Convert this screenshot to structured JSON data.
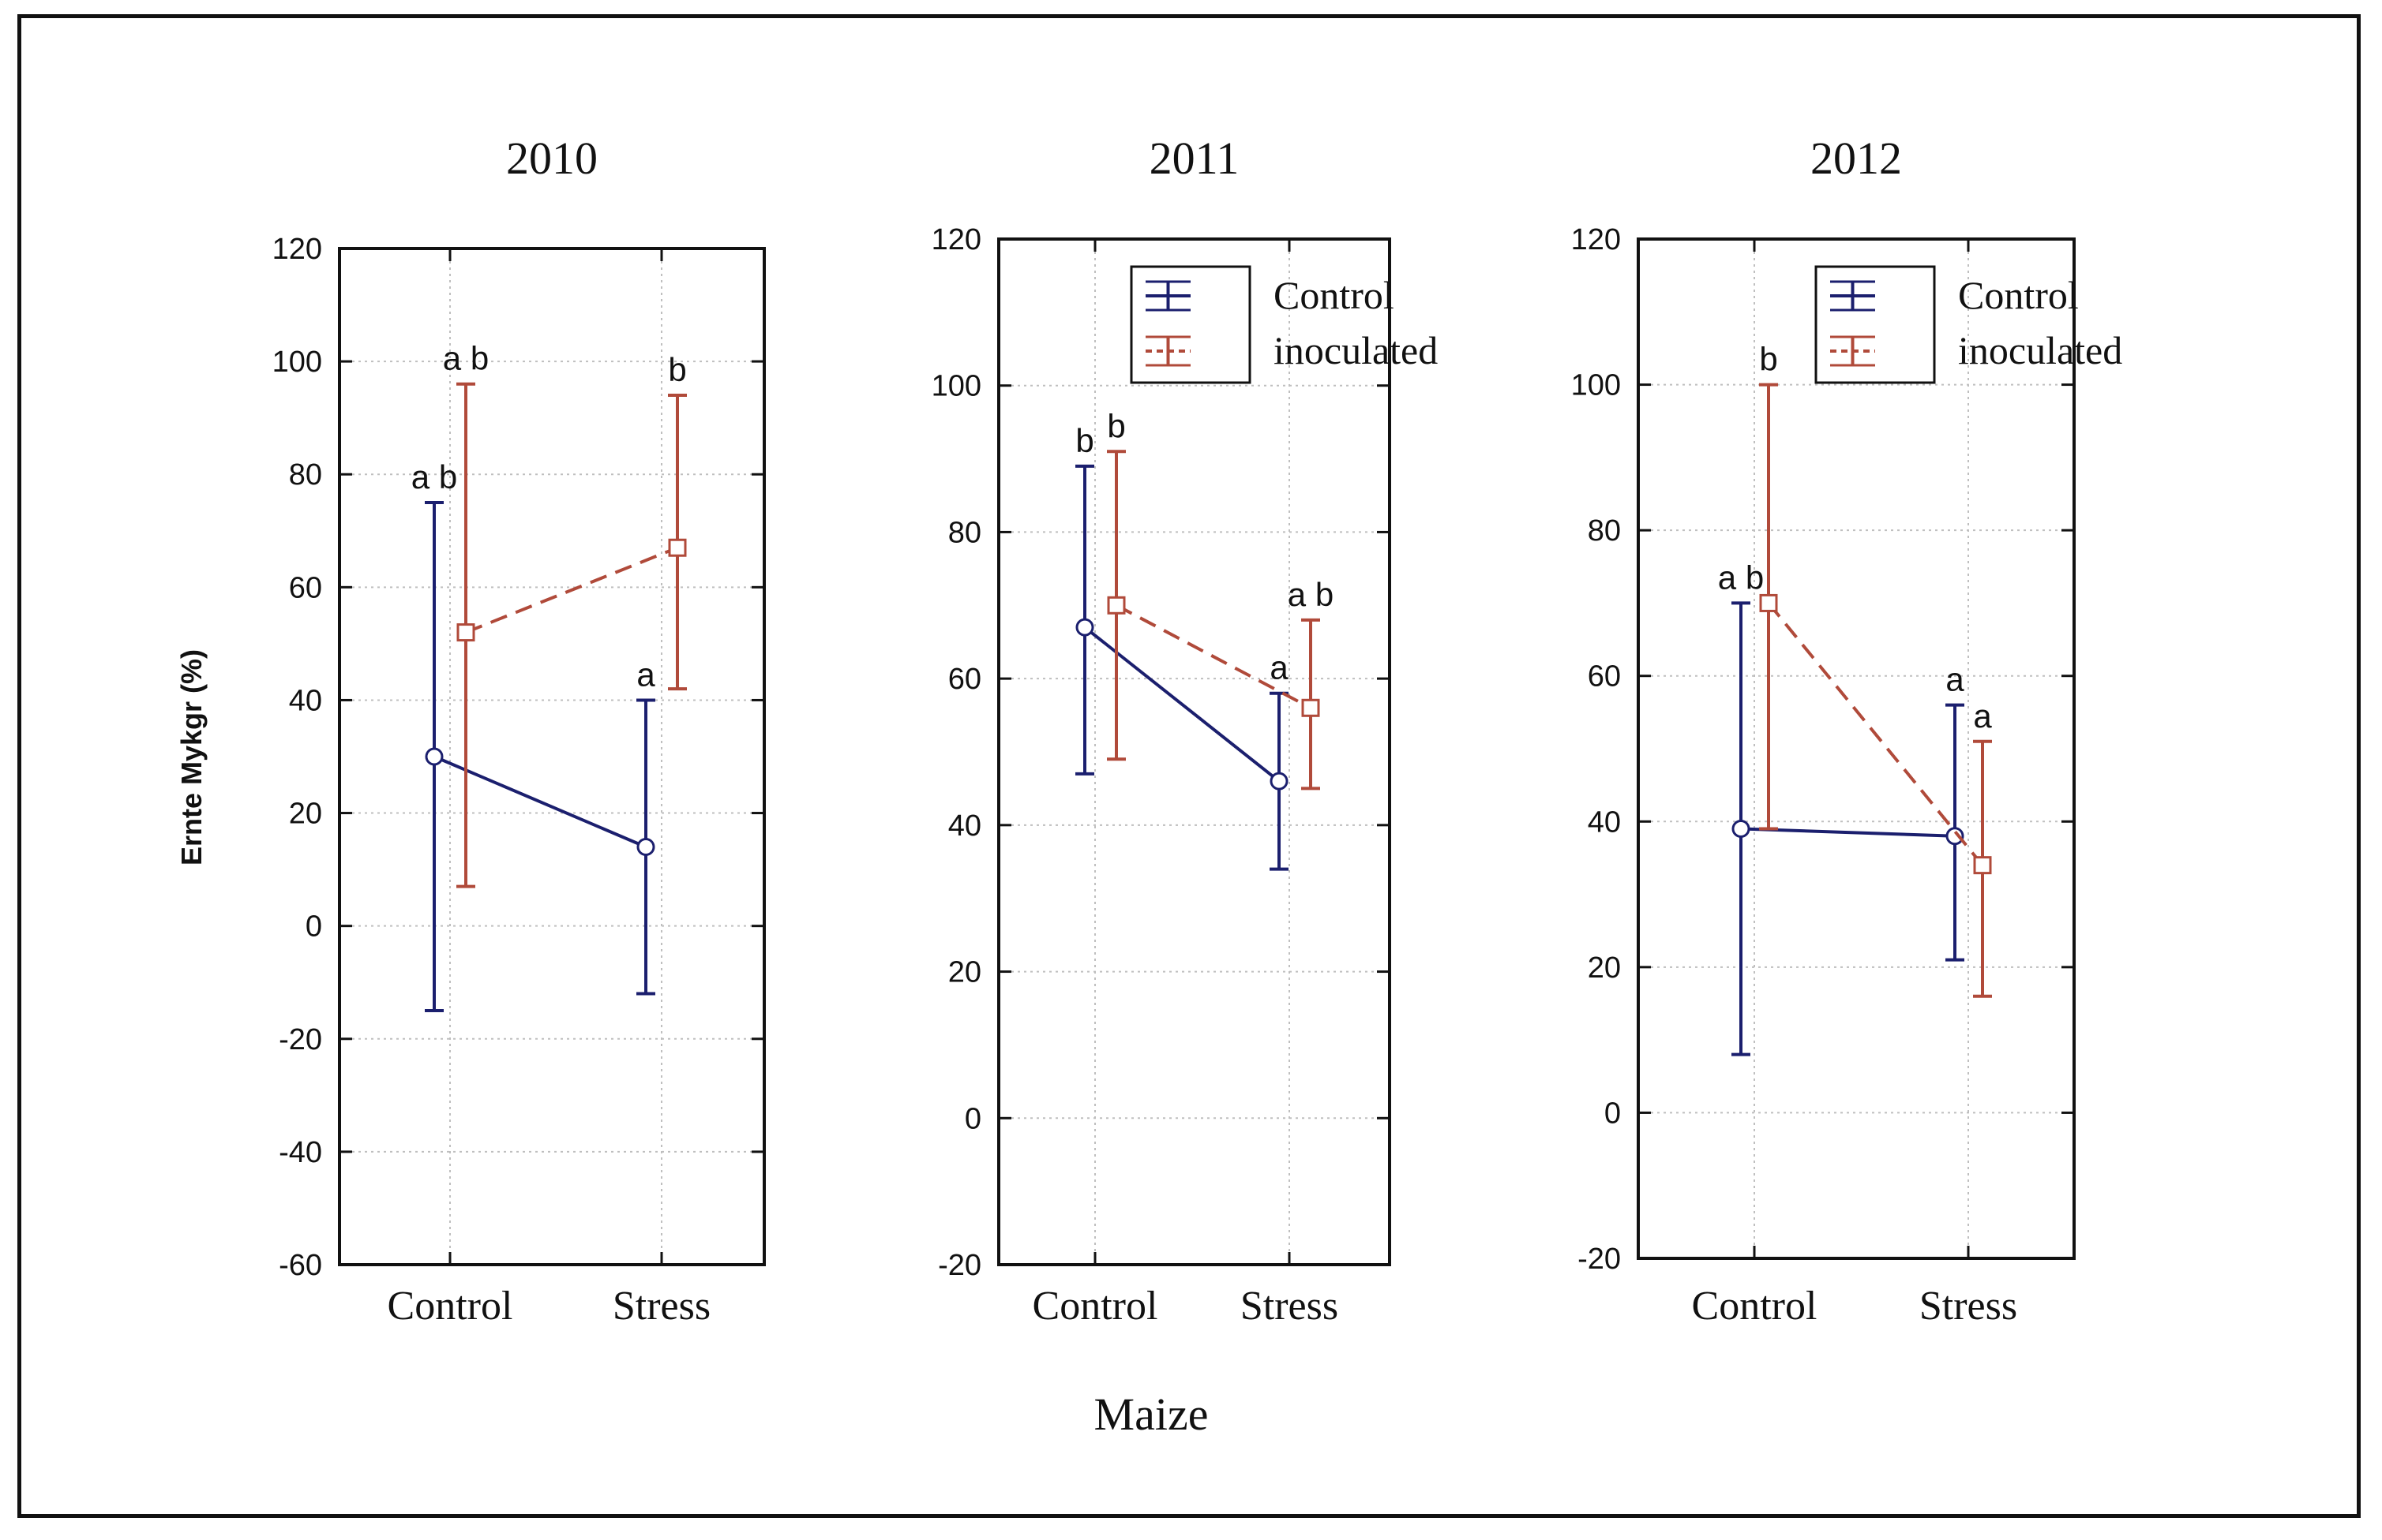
{
  "figure": {
    "xlabel": "Maize",
    "ylabel": "Ernte Mykgr (%)"
  },
  "chart_data": [
    {
      "type": "line",
      "title": "2010",
      "categories": [
        "Control",
        "Stress"
      ],
      "ylim": [
        -60,
        120
      ],
      "yticks": [
        -60,
        -40,
        -20,
        0,
        20,
        40,
        60,
        80,
        100,
        120
      ],
      "ytick_labels": [
        "-60",
        "-40",
        "-20",
        "0",
        "20",
        "40",
        "60",
        "80",
        "100",
        "120"
      ],
      "grid": true,
      "legend": null,
      "series": [
        {
          "name": "Control",
          "color": "#1b1f6e",
          "style": "solid",
          "values": [
            30,
            14
          ],
          "lower": [
            -15,
            -12
          ],
          "upper": [
            75,
            40
          ],
          "letters": [
            "a b",
            "a"
          ]
        },
        {
          "name": "inoculated",
          "color": "#b04a3a",
          "style": "dashed",
          "values": [
            52,
            67
          ],
          "lower": [
            7,
            42
          ],
          "upper": [
            96,
            94
          ],
          "letters": [
            "a b",
            "b"
          ]
        }
      ]
    },
    {
      "type": "line",
      "title": "2011",
      "categories": [
        "Control",
        "Stress"
      ],
      "ylim": [
        -20,
        120
      ],
      "yticks": [
        -20,
        0,
        20,
        40,
        60,
        80,
        100,
        120
      ],
      "ytick_labels": [
        "-20",
        "0",
        "20",
        "40",
        "60",
        "80",
        "100",
        "120"
      ],
      "grid": true,
      "legend": "top-right",
      "series": [
        {
          "name": "Control",
          "color": "#1b1f6e",
          "style": "solid",
          "values": [
            67,
            46
          ],
          "lower": [
            47,
            34
          ],
          "upper": [
            89,
            58
          ],
          "letters": [
            "b",
            "a"
          ]
        },
        {
          "name": "inoculated",
          "color": "#b04a3a",
          "style": "dashed",
          "values": [
            70,
            56
          ],
          "lower": [
            49,
            45
          ],
          "upper": [
            91,
            68
          ],
          "letters": [
            "b",
            "a b"
          ]
        }
      ]
    },
    {
      "type": "line",
      "title": "2012",
      "categories": [
        "Control",
        "Stress"
      ],
      "ylim": [
        -20,
        120
      ],
      "yticks": [
        -20,
        0,
        20,
        40,
        60,
        80,
        100,
        120
      ],
      "ytick_labels": [
        "-20",
        "0",
        "20",
        "40",
        "60",
        "80",
        "100",
        "120"
      ],
      "grid": true,
      "legend": "top-right",
      "series": [
        {
          "name": "Control",
          "color": "#1b1f6e",
          "style": "solid",
          "values": [
            39,
            38
          ],
          "lower": [
            8,
            21
          ],
          "upper": [
            70,
            56
          ],
          "letters": [
            "a b",
            "a"
          ]
        },
        {
          "name": "inoculated",
          "color": "#b04a3a",
          "style": "dashed",
          "values": [
            70,
            34
          ],
          "lower": [
            39,
            16
          ],
          "upper": [
            100,
            51
          ],
          "letters": [
            "b",
            "a"
          ]
        }
      ]
    }
  ]
}
